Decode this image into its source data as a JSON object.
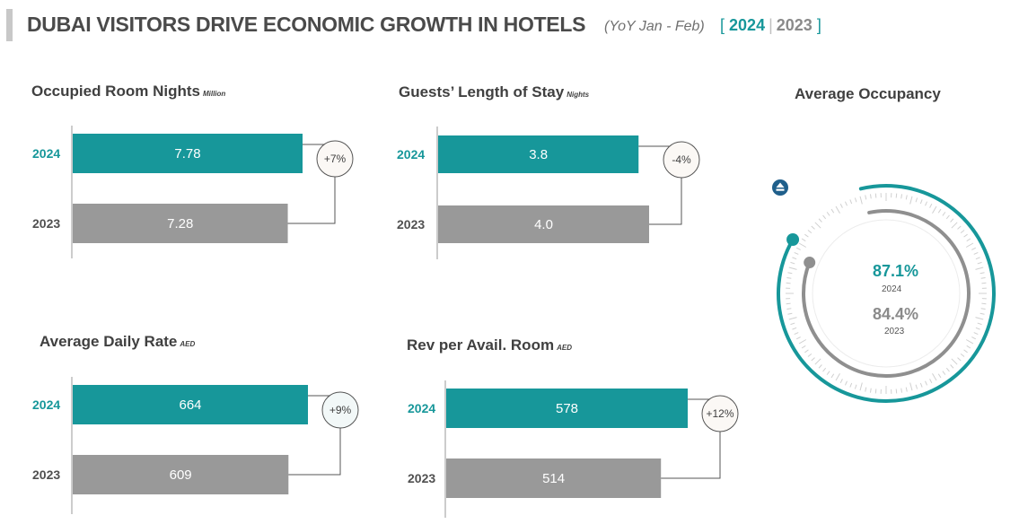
{
  "header": {
    "title": "DUBAI VISITORS DRIVE ECONOMIC GROWTH IN HOTELS",
    "subtitle": "(YoY Jan - Feb)",
    "bracket_open": "[",
    "bracket_close": "]",
    "year_2024": "2024",
    "year_2023": "2023"
  },
  "colors": {
    "y2024": "#17979a",
    "y2023": "#999999"
  },
  "chart_data": [
    {
      "type": "bar",
      "title": "Occupied Room Nights",
      "unit": "Million",
      "categories": [
        "2024",
        "2023"
      ],
      "values": [
        7.78,
        7.28
      ],
      "value_labels": [
        "7.78",
        "7.28"
      ],
      "change": "+7%"
    },
    {
      "type": "bar",
      "title": "Guests’ Length of Stay",
      "unit": "Nights",
      "categories": [
        "2024",
        "2023"
      ],
      "values": [
        3.8,
        4.0
      ],
      "value_labels": [
        "3.8",
        "4.0"
      ],
      "change": "-4%"
    },
    {
      "type": "bar",
      "title": "Average Daily Rate",
      "unit": "AED",
      "categories": [
        "2024",
        "2023"
      ],
      "values": [
        664,
        609
      ],
      "value_labels": [
        "664",
        "609"
      ],
      "change": "+9%"
    },
    {
      "type": "bar",
      "title": "Rev per Avail. Room",
      "unit": "AED",
      "categories": [
        "2024",
        "2023"
      ],
      "values": [
        578,
        514
      ],
      "value_labels": [
        "578",
        "514"
      ],
      "change": "+12%"
    },
    {
      "type": "gauge",
      "title": "Average Occupancy",
      "series": [
        {
          "name": "2024",
          "value": 87.1,
          "label": "87.1%"
        },
        {
          "name": "2023",
          "value": 84.4,
          "label": "84.4%"
        }
      ],
      "ylim": [
        0,
        100
      ]
    }
  ],
  "icons": {
    "trend": "up-arrow-icon"
  }
}
